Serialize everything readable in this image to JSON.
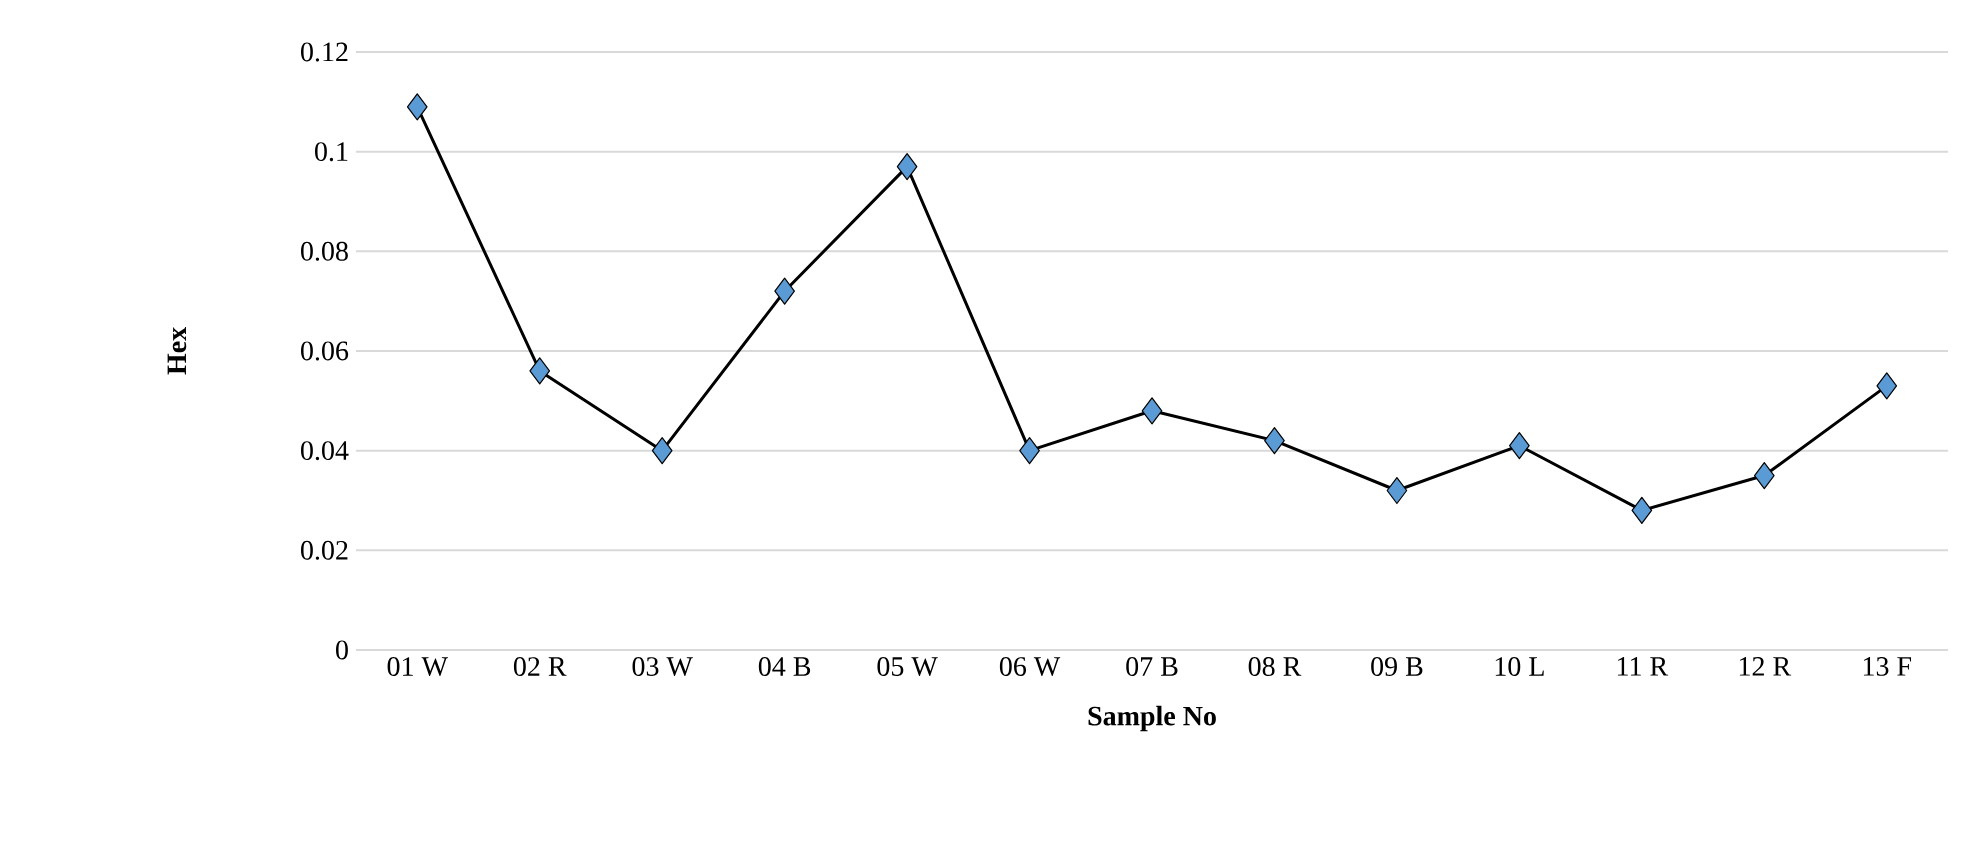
{
  "chart_data": {
    "type": "line",
    "xlabel": "Sample No",
    "ylabel": "Hex",
    "categories": [
      "01 W",
      "02 R",
      "03 W",
      "04 B",
      "05 W",
      "06 W",
      "07 B",
      "08 R",
      "09 B",
      "10 L",
      "11 R",
      "12 R",
      "13 F"
    ],
    "series": [
      {
        "color": "#5b9bd5",
        "values": [
          0.109,
          0.056,
          0.04,
          0.072,
          0.097,
          0.04,
          0.048,
          0.042,
          0.032,
          0.041,
          0.028,
          0.035,
          0.053
        ]
      }
    ],
    "marker": "diamond",
    "line_style": "solid",
    "ylim": [
      0,
      0.12
    ],
    "yticks": [
      0,
      0.02,
      0.04,
      0.06,
      0.08,
      0.1,
      0.12
    ],
    "grid": "y"
  }
}
